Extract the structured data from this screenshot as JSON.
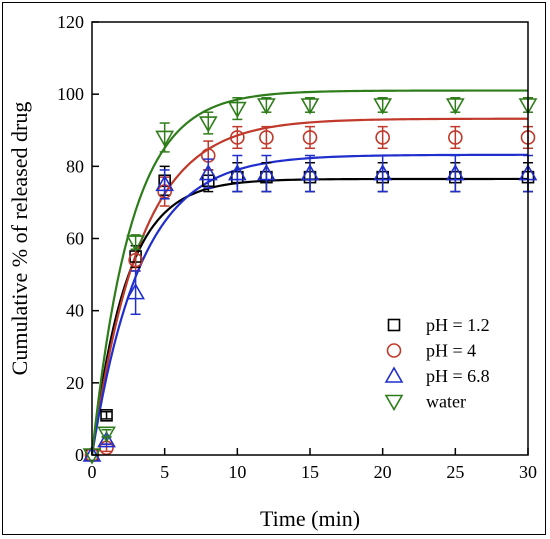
{
  "chart_data": {
    "type": "scatter",
    "title": "",
    "xlabel": "Time (min)",
    "ylabel": "Cumulative % of released drug",
    "xlim": [
      0,
      30
    ],
    "ylim": [
      0,
      120
    ],
    "x_ticks": [
      0,
      5,
      10,
      15,
      20,
      25,
      30
    ],
    "y_ticks": [
      0,
      20,
      40,
      60,
      80,
      100,
      120
    ],
    "grid": false,
    "legend_position": "bottom-right",
    "x": [
      0,
      1,
      3,
      5,
      8,
      10,
      12,
      15,
      20,
      25,
      30
    ],
    "series": [
      {
        "name": "pH = 1.2",
        "marker": "square",
        "color": "#000000",
        "values": [
          0,
          11,
          55,
          76,
          76,
          77,
          77,
          77,
          77,
          77,
          77
        ],
        "errors": [
          0,
          1,
          3,
          4,
          3,
          4,
          4,
          4,
          4,
          4,
          4
        ],
        "fit_plateau": 76.5,
        "fit_rate": 0.42
      },
      {
        "name": "pH = 4",
        "marker": "circle",
        "color": "#c0392b",
        "values": [
          0,
          2,
          54,
          73,
          83,
          88,
          88,
          88,
          88,
          88,
          88
        ],
        "errors": [
          0,
          1,
          3,
          4,
          4,
          3,
          3,
          3,
          3,
          3,
          3
        ],
        "fit_plateau": 93.2,
        "fit_rate": 0.3
      },
      {
        "name": "pH = 6.8",
        "marker": "triangle-up",
        "color": "#1f2ecc",
        "values": [
          0,
          4,
          45,
          75,
          78,
          78,
          78,
          78,
          78,
          78,
          78
        ],
        "errors": [
          0,
          1,
          6,
          4,
          4,
          5,
          5,
          5,
          5,
          5,
          5
        ],
        "fit_plateau": 83.2,
        "fit_rate": 0.3
      },
      {
        "name": "water",
        "marker": "triangle-down",
        "color": "#2e7d1a",
        "values": [
          0,
          6,
          59,
          88,
          92,
          96,
          97,
          97,
          97,
          97,
          97
        ],
        "errors": [
          0,
          1,
          2,
          4,
          3,
          3,
          2,
          2,
          2,
          2,
          2
        ],
        "fit_plateau": 101,
        "fit_rate": 0.37
      }
    ]
  }
}
